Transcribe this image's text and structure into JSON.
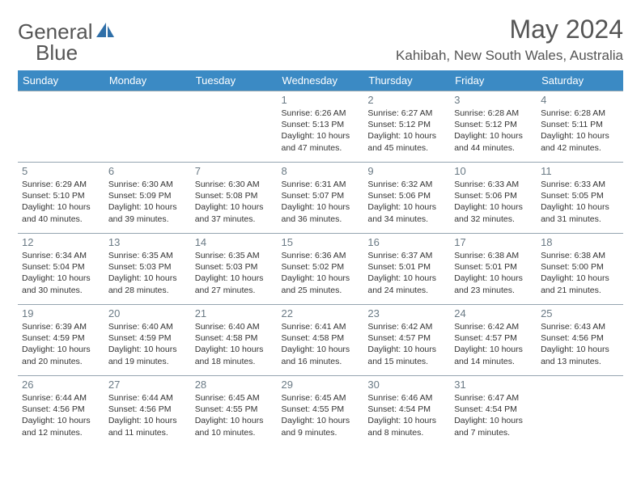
{
  "logo": {
    "word1": "General",
    "word2": "Blue"
  },
  "title": "May 2024",
  "location": "Kahibah, New South Wales, Australia",
  "colors": {
    "header_bg": "#3b8ac4",
    "header_fg": "#ffffff",
    "border": "#95a5b0",
    "logo_accent": "#2f6fa8"
  },
  "weekdays": [
    "Sunday",
    "Monday",
    "Tuesday",
    "Wednesday",
    "Thursday",
    "Friday",
    "Saturday"
  ],
  "weeks": [
    [
      null,
      null,
      null,
      {
        "n": "1",
        "sr": "Sunrise: 6:26 AM",
        "ss": "Sunset: 5:13 PM",
        "d1": "Daylight: 10 hours",
        "d2": "and 47 minutes."
      },
      {
        "n": "2",
        "sr": "Sunrise: 6:27 AM",
        "ss": "Sunset: 5:12 PM",
        "d1": "Daylight: 10 hours",
        "d2": "and 45 minutes."
      },
      {
        "n": "3",
        "sr": "Sunrise: 6:28 AM",
        "ss": "Sunset: 5:12 PM",
        "d1": "Daylight: 10 hours",
        "d2": "and 44 minutes."
      },
      {
        "n": "4",
        "sr": "Sunrise: 6:28 AM",
        "ss": "Sunset: 5:11 PM",
        "d1": "Daylight: 10 hours",
        "d2": "and 42 minutes."
      }
    ],
    [
      {
        "n": "5",
        "sr": "Sunrise: 6:29 AM",
        "ss": "Sunset: 5:10 PM",
        "d1": "Daylight: 10 hours",
        "d2": "and 40 minutes."
      },
      {
        "n": "6",
        "sr": "Sunrise: 6:30 AM",
        "ss": "Sunset: 5:09 PM",
        "d1": "Daylight: 10 hours",
        "d2": "and 39 minutes."
      },
      {
        "n": "7",
        "sr": "Sunrise: 6:30 AM",
        "ss": "Sunset: 5:08 PM",
        "d1": "Daylight: 10 hours",
        "d2": "and 37 minutes."
      },
      {
        "n": "8",
        "sr": "Sunrise: 6:31 AM",
        "ss": "Sunset: 5:07 PM",
        "d1": "Daylight: 10 hours",
        "d2": "and 36 minutes."
      },
      {
        "n": "9",
        "sr": "Sunrise: 6:32 AM",
        "ss": "Sunset: 5:06 PM",
        "d1": "Daylight: 10 hours",
        "d2": "and 34 minutes."
      },
      {
        "n": "10",
        "sr": "Sunrise: 6:33 AM",
        "ss": "Sunset: 5:06 PM",
        "d1": "Daylight: 10 hours",
        "d2": "and 32 minutes."
      },
      {
        "n": "11",
        "sr": "Sunrise: 6:33 AM",
        "ss": "Sunset: 5:05 PM",
        "d1": "Daylight: 10 hours",
        "d2": "and 31 minutes."
      }
    ],
    [
      {
        "n": "12",
        "sr": "Sunrise: 6:34 AM",
        "ss": "Sunset: 5:04 PM",
        "d1": "Daylight: 10 hours",
        "d2": "and 30 minutes."
      },
      {
        "n": "13",
        "sr": "Sunrise: 6:35 AM",
        "ss": "Sunset: 5:03 PM",
        "d1": "Daylight: 10 hours",
        "d2": "and 28 minutes."
      },
      {
        "n": "14",
        "sr": "Sunrise: 6:35 AM",
        "ss": "Sunset: 5:03 PM",
        "d1": "Daylight: 10 hours",
        "d2": "and 27 minutes."
      },
      {
        "n": "15",
        "sr": "Sunrise: 6:36 AM",
        "ss": "Sunset: 5:02 PM",
        "d1": "Daylight: 10 hours",
        "d2": "and 25 minutes."
      },
      {
        "n": "16",
        "sr": "Sunrise: 6:37 AM",
        "ss": "Sunset: 5:01 PM",
        "d1": "Daylight: 10 hours",
        "d2": "and 24 minutes."
      },
      {
        "n": "17",
        "sr": "Sunrise: 6:38 AM",
        "ss": "Sunset: 5:01 PM",
        "d1": "Daylight: 10 hours",
        "d2": "and 23 minutes."
      },
      {
        "n": "18",
        "sr": "Sunrise: 6:38 AM",
        "ss": "Sunset: 5:00 PM",
        "d1": "Daylight: 10 hours",
        "d2": "and 21 minutes."
      }
    ],
    [
      {
        "n": "19",
        "sr": "Sunrise: 6:39 AM",
        "ss": "Sunset: 4:59 PM",
        "d1": "Daylight: 10 hours",
        "d2": "and 20 minutes."
      },
      {
        "n": "20",
        "sr": "Sunrise: 6:40 AM",
        "ss": "Sunset: 4:59 PM",
        "d1": "Daylight: 10 hours",
        "d2": "and 19 minutes."
      },
      {
        "n": "21",
        "sr": "Sunrise: 6:40 AM",
        "ss": "Sunset: 4:58 PM",
        "d1": "Daylight: 10 hours",
        "d2": "and 18 minutes."
      },
      {
        "n": "22",
        "sr": "Sunrise: 6:41 AM",
        "ss": "Sunset: 4:58 PM",
        "d1": "Daylight: 10 hours",
        "d2": "and 16 minutes."
      },
      {
        "n": "23",
        "sr": "Sunrise: 6:42 AM",
        "ss": "Sunset: 4:57 PM",
        "d1": "Daylight: 10 hours",
        "d2": "and 15 minutes."
      },
      {
        "n": "24",
        "sr": "Sunrise: 6:42 AM",
        "ss": "Sunset: 4:57 PM",
        "d1": "Daylight: 10 hours",
        "d2": "and 14 minutes."
      },
      {
        "n": "25",
        "sr": "Sunrise: 6:43 AM",
        "ss": "Sunset: 4:56 PM",
        "d1": "Daylight: 10 hours",
        "d2": "and 13 minutes."
      }
    ],
    [
      {
        "n": "26",
        "sr": "Sunrise: 6:44 AM",
        "ss": "Sunset: 4:56 PM",
        "d1": "Daylight: 10 hours",
        "d2": "and 12 minutes."
      },
      {
        "n": "27",
        "sr": "Sunrise: 6:44 AM",
        "ss": "Sunset: 4:56 PM",
        "d1": "Daylight: 10 hours",
        "d2": "and 11 minutes."
      },
      {
        "n": "28",
        "sr": "Sunrise: 6:45 AM",
        "ss": "Sunset: 4:55 PM",
        "d1": "Daylight: 10 hours",
        "d2": "and 10 minutes."
      },
      {
        "n": "29",
        "sr": "Sunrise: 6:45 AM",
        "ss": "Sunset: 4:55 PM",
        "d1": "Daylight: 10 hours",
        "d2": "and 9 minutes."
      },
      {
        "n": "30",
        "sr": "Sunrise: 6:46 AM",
        "ss": "Sunset: 4:54 PM",
        "d1": "Daylight: 10 hours",
        "d2": "and 8 minutes."
      },
      {
        "n": "31",
        "sr": "Sunrise: 6:47 AM",
        "ss": "Sunset: 4:54 PM",
        "d1": "Daylight: 10 hours",
        "d2": "and 7 minutes."
      },
      null
    ]
  ]
}
